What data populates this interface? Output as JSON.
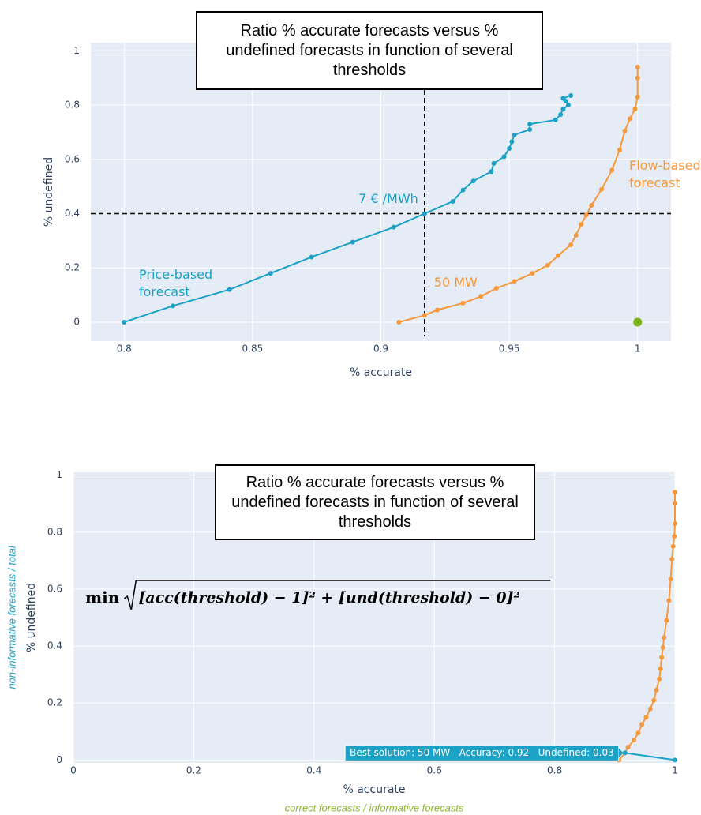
{
  "chart_data": [
    {
      "type": "scatter",
      "title": "Ratio % accurate forecasts versus % undefined forecasts in function of several thresholds",
      "x_label": "% accurate",
      "y_label": "% undefined",
      "xlim": [
        0.787,
        1.013
      ],
      "ylim": [
        -0.07,
        1.03
      ],
      "xticks": [
        0.8,
        0.85,
        0.9,
        0.95,
        1
      ],
      "yticks": [
        0,
        0.2,
        0.4,
        0.6,
        0.8,
        1
      ],
      "grid": true,
      "series": [
        {
          "name": "Price-based forecast",
          "color": "#1ba2c6",
          "x": [
            0.8,
            0.819,
            0.841,
            0.857,
            0.873,
            0.889,
            0.905,
            0.917,
            0.928,
            0.932,
            0.936,
            0.943,
            0.944,
            0.948,
            0.95,
            0.951,
            0.952,
            0.958,
            0.958,
            0.968,
            0.97,
            0.971,
            0.973,
            0.972,
            0.971,
            0.974
          ],
          "y": [
            0,
            0.06,
            0.12,
            0.18,
            0.24,
            0.295,
            0.35,
            0.4,
            0.445,
            0.487,
            0.52,
            0.555,
            0.585,
            0.61,
            0.64,
            0.665,
            0.69,
            0.71,
            0.73,
            0.745,
            0.765,
            0.785,
            0.8,
            0.815,
            0.825,
            0.835
          ]
        },
        {
          "name": "Flow-based forecast",
          "color": "#f5993c",
          "x": [
            0.907,
            0.917,
            0.922,
            0.932,
            0.939,
            0.945,
            0.952,
            0.959,
            0.965,
            0.969,
            0.974,
            0.976,
            0.978,
            0.98,
            0.982,
            0.986,
            0.99,
            0.993,
            0.995,
            0.997,
            0.999,
            1,
            1,
            1
          ],
          "y": [
            0,
            0.025,
            0.045,
            0.07,
            0.095,
            0.125,
            0.15,
            0.18,
            0.21,
            0.245,
            0.285,
            0.32,
            0.36,
            0.395,
            0.43,
            0.49,
            0.56,
            0.635,
            0.705,
            0.75,
            0.785,
            0.83,
            0.9,
            0.94
          ]
        },
        {
          "color": "#7ab317",
          "x": [
            1
          ],
          "y": [
            0
          ]
        }
      ],
      "threshold_x": 0.917,
      "threshold_y": 0.4,
      "annotations": [
        {
          "text": "7 € /MWh",
          "color": "#1ba2c6"
        },
        {
          "text": "50 MW",
          "color": "#f5993c"
        }
      ]
    },
    {
      "type": "scatter",
      "title": "Ratio % accurate forecasts versus % undefined forecasts in function of several thresholds",
      "x_label": "% accurate",
      "y_label": "% undefined",
      "x_note": "correct forecasts / informative forecasts",
      "y_note": "non-informative forecasts / total",
      "formula": {
        "operator": "min",
        "terms": "[acc(threshold) − 1]² + [und(threshold) − 0]²"
      },
      "xlim": [
        0,
        1
      ],
      "ylim": [
        -0.01,
        1.01
      ],
      "xticks": [
        0,
        0.2,
        0.4,
        0.6,
        0.8,
        1
      ],
      "yticks": [
        0,
        0.2,
        0.4,
        0.6,
        0.8,
        1
      ],
      "grid": true,
      "series": [
        {
          "color": "#f5993c",
          "x": [
            0.907,
            0.917,
            0.922,
            0.932,
            0.939,
            0.945,
            0.952,
            0.959,
            0.965,
            0.969,
            0.974,
            0.976,
            0.978,
            0.98,
            0.982,
            0.986,
            0.99,
            0.993,
            0.995,
            0.997,
            0.999,
            1,
            1,
            1
          ],
          "y": [
            0,
            0.025,
            0.045,
            0.07,
            0.095,
            0.125,
            0.15,
            0.18,
            0.21,
            0.245,
            0.285,
            0.32,
            0.36,
            0.395,
            0.43,
            0.49,
            0.56,
            0.635,
            0.705,
            0.75,
            0.785,
            0.83,
            0.9,
            0.94
          ]
        },
        {
          "color": "#1ba2c6",
          "x": [
            0.917,
            1
          ],
          "y": [
            0.025,
            0
          ]
        }
      ],
      "hover_label": "Best solution: 50 MW   Accuracy: 0.92   Undefined: 0.03"
    }
  ]
}
